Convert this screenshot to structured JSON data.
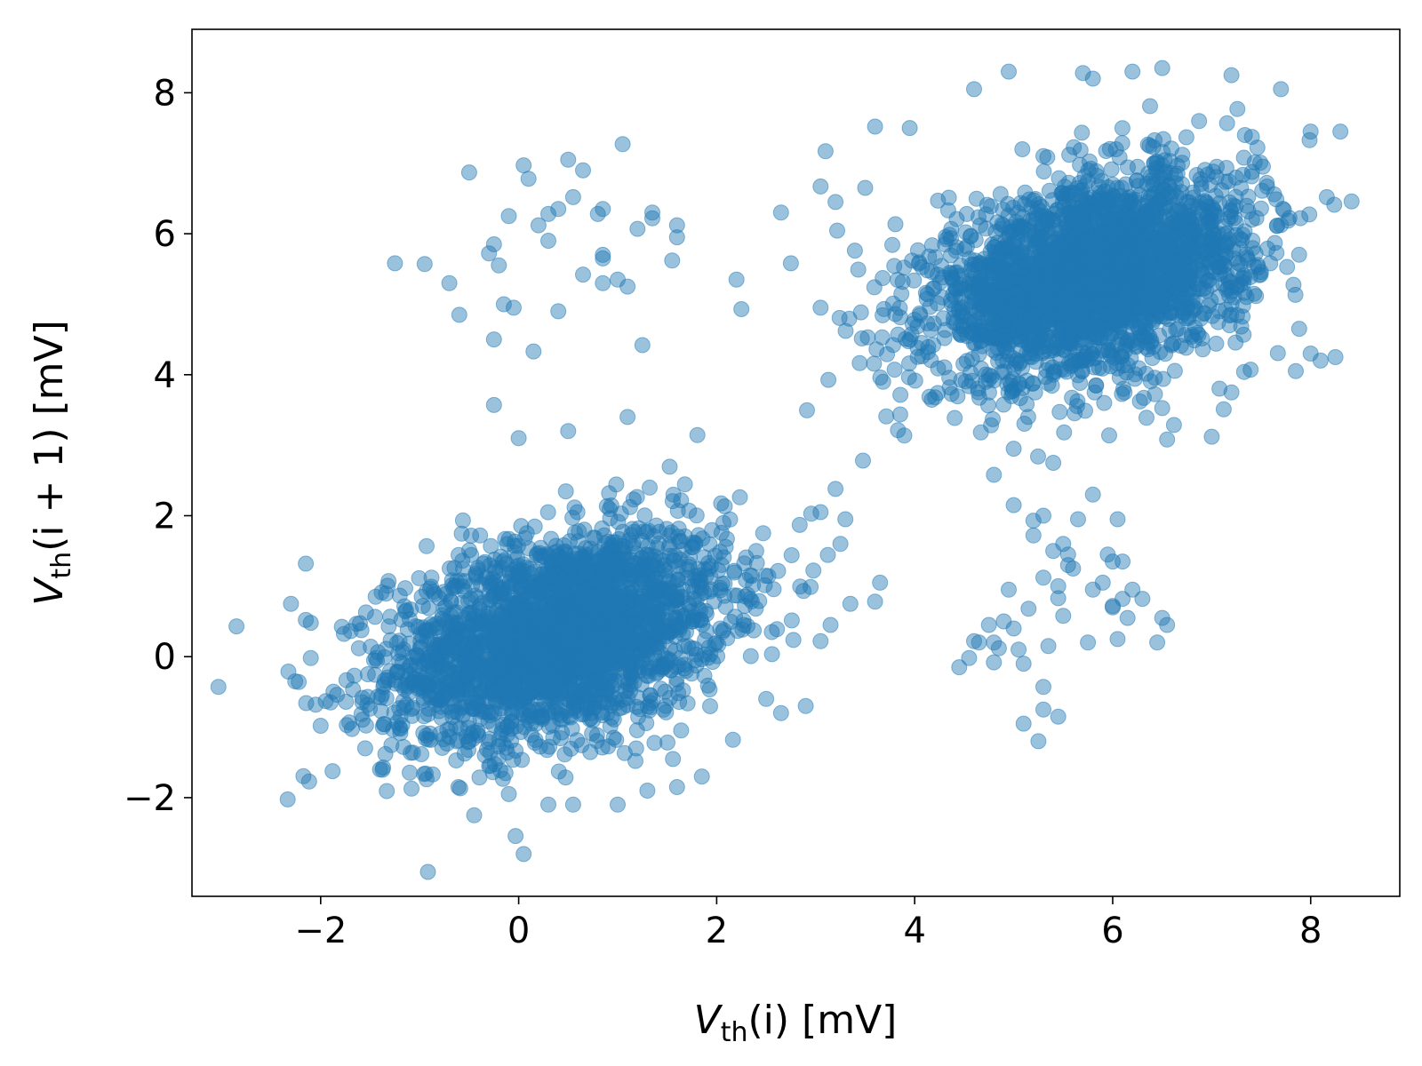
{
  "chart_data": {
    "type": "scatter",
    "title": "",
    "xlabel": {
      "var": "V",
      "sub": "th",
      "rest": "(i) [mV]"
    },
    "ylabel": {
      "var": "V",
      "sub": "th",
      "rest": "(i + 1) [mV]"
    },
    "xlim": [
      -3.3,
      8.9
    ],
    "ylim": [
      -3.4,
      8.9
    ],
    "x_ticks": [
      -2,
      0,
      2,
      4,
      6,
      8
    ],
    "y_ticks": [
      -2,
      0,
      2,
      4,
      6,
      8
    ],
    "x_tick_labels": [
      "−2",
      "0",
      "2",
      "4",
      "6",
      "8"
    ],
    "y_tick_labels": [
      "−2",
      "0",
      "2",
      "4",
      "6",
      "8"
    ],
    "grid": false,
    "marker_color": "#1f77b4",
    "marker_alpha": 0.45,
    "clusters": [
      {
        "center": [
          0.4,
          0.3
        ],
        "spread": [
          0.85,
          0.75
        ],
        "correlation": 0.35
      },
      {
        "center": [
          5.8,
          5.4
        ],
        "spread": [
          0.8,
          0.72
        ],
        "correlation": 0.35
      }
    ],
    "outliers": [
      [
        -2.85,
        0.43
      ],
      [
        -2.3,
        0.75
      ],
      [
        -2.15,
        1.32
      ],
      [
        -2.15,
        0.52
      ],
      [
        -2.1,
        0.48
      ],
      [
        -2.1,
        -0.02
      ],
      [
        -2.05,
        -0.68
      ],
      [
        -2.0,
        -0.98
      ],
      [
        -1.9,
        -0.65
      ],
      [
        -1.25,
        5.58
      ],
      [
        -0.95,
        5.57
      ],
      [
        -0.7,
        5.3
      ],
      [
        -0.5,
        6.87
      ],
      [
        -0.25,
        5.85
      ],
      [
        -0.3,
        5.72
      ],
      [
        -0.2,
        5.55
      ],
      [
        -0.1,
        6.25
      ],
      [
        -0.15,
        5.0
      ],
      [
        -0.25,
        4.5
      ],
      [
        -0.25,
        3.57
      ],
      [
        -0.05,
        4.95
      ],
      [
        0.05,
        6.97
      ],
      [
        0.1,
        6.78
      ],
      [
        0.15,
        4.33
      ],
      [
        0.2,
        6.12
      ],
      [
        0.3,
        6.28
      ],
      [
        0.3,
        5.9
      ],
      [
        0.4,
        4.9
      ],
      [
        0.4,
        6.35
      ],
      [
        0.5,
        7.05
      ],
      [
        0.55,
        6.52
      ],
      [
        0.65,
        5.42
      ],
      [
        0.65,
        6.9
      ],
      [
        0.8,
        6.28
      ],
      [
        0.85,
        6.35
      ],
      [
        0.85,
        5.7
      ],
      [
        0.85,
        5.65
      ],
      [
        0.85,
        5.3
      ],
      [
        1.0,
        5.35
      ],
      [
        1.1,
        5.25
      ],
      [
        1.05,
        7.27
      ],
      [
        1.2,
        6.07
      ],
      [
        1.35,
        6.22
      ],
      [
        1.35,
        6.3
      ],
      [
        1.55,
        5.62
      ],
      [
        1.6,
        6.12
      ],
      [
        1.6,
        5.95
      ],
      [
        1.25,
        4.42
      ],
      [
        2.2,
        5.35
      ],
      [
        2.25,
        4.93
      ],
      [
        -0.6,
        4.85
      ],
      [
        0.0,
        3.1
      ],
      [
        0.5,
        3.2
      ],
      [
        1.1,
        3.4
      ],
      [
        2.65,
        6.3
      ],
      [
        2.75,
        5.58
      ],
      [
        3.05,
        6.67
      ],
      [
        3.1,
        7.17
      ],
      [
        3.2,
        6.45
      ],
      [
        3.5,
        6.65
      ],
      [
        3.6,
        7.52
      ],
      [
        3.05,
        4.95
      ],
      [
        4.8,
        2.58
      ],
      [
        5.0,
        2.95
      ],
      [
        5.0,
        2.15
      ],
      [
        5.3,
        2.0
      ],
      [
        5.2,
        1.93
      ],
      [
        5.4,
        2.75
      ],
      [
        5.45,
        1.0
      ],
      [
        5.5,
        1.6
      ],
      [
        5.65,
        1.95
      ],
      [
        5.8,
        2.3
      ],
      [
        5.2,
        1.72
      ],
      [
        5.3,
        1.12
      ],
      [
        5.4,
        1.5
      ],
      [
        5.55,
        1.3
      ],
      [
        5.6,
        1.25
      ],
      [
        5.45,
        0.83
      ],
      [
        5.5,
        0.58
      ],
      [
        5.35,
        0.15
      ],
      [
        5.0,
        0.4
      ],
      [
        4.85,
        0.12
      ],
      [
        4.9,
        0.5
      ],
      [
        4.75,
        0.45
      ],
      [
        4.8,
        0.2
      ],
      [
        4.6,
        0.22
      ],
      [
        4.55,
        -0.02
      ],
      [
        4.45,
        -0.15
      ],
      [
        4.8,
        -0.08
      ],
      [
        5.05,
        0.1
      ],
      [
        5.1,
        -0.1
      ],
      [
        5.3,
        -0.43
      ],
      [
        5.1,
        -0.95
      ],
      [
        5.25,
        -1.2
      ],
      [
        5.3,
        -0.75
      ],
      [
        5.45,
        -0.85
      ],
      [
        5.15,
        0.68
      ],
      [
        5.55,
        1.45
      ],
      [
        5.8,
        0.95
      ],
      [
        5.9,
        1.05
      ],
      [
        6.0,
        0.7
      ],
      [
        6.0,
        0.72
      ],
      [
        6.15,
        0.55
      ],
      [
        6.05,
        0.25
      ],
      [
        6.1,
        0.82
      ],
      [
        6.2,
        0.95
      ],
      [
        6.3,
        0.82
      ],
      [
        6.5,
        0.55
      ],
      [
        6.55,
        0.45
      ],
      [
        6.45,
        0.2
      ],
      [
        5.95,
        1.45
      ],
      [
        6.0,
        1.35
      ],
      [
        6.1,
        1.35
      ],
      [
        6.05,
        1.95
      ],
      [
        5.75,
        0.2
      ],
      [
        4.65,
        0.2
      ],
      [
        4.95,
        0.95
      ],
      [
        7.0,
        3.12
      ],
      [
        6.55,
        3.08
      ],
      [
        7.2,
        3.75
      ],
      [
        8.25,
        4.25
      ],
      [
        8.1,
        4.2
      ],
      [
        7.85,
        4.05
      ],
      [
        8.0,
        4.3
      ],
      [
        8.3,
        7.45
      ],
      [
        8.0,
        7.45
      ],
      [
        7.7,
        8.05
      ],
      [
        7.2,
        8.25
      ],
      [
        6.5,
        8.35
      ],
      [
        6.2,
        8.3
      ],
      [
        5.8,
        8.2
      ],
      [
        5.7,
        8.28
      ],
      [
        4.95,
        8.3
      ],
      [
        4.6,
        8.05
      ],
      [
        3.95,
        7.5
      ],
      [
        -0.45,
        -2.25
      ],
      [
        -0.1,
        -1.95
      ],
      [
        0.05,
        -2.8
      ],
      [
        0.3,
        -2.1
      ],
      [
        0.55,
        -2.1
      ],
      [
        1.0,
        -2.1
      ],
      [
        1.6,
        -1.85
      ],
      [
        1.85,
        -1.7
      ],
      [
        1.3,
        -1.9
      ],
      [
        3.2,
        2.38
      ],
      [
        3.05,
        2.05
      ],
      [
        3.3,
        1.95
      ],
      [
        3.25,
        1.6
      ],
      [
        3.65,
        1.05
      ],
      [
        3.6,
        0.78
      ],
      [
        3.35,
        0.75
      ],
      [
        3.15,
        0.45
      ],
      [
        3.05,
        0.22
      ],
      [
        2.9,
        -0.7
      ],
      [
        2.65,
        -0.8
      ],
      [
        2.5,
        -0.6
      ],
      [
        -1.4,
        -1.6
      ],
      [
        -1.55,
        -1.3
      ]
    ]
  }
}
